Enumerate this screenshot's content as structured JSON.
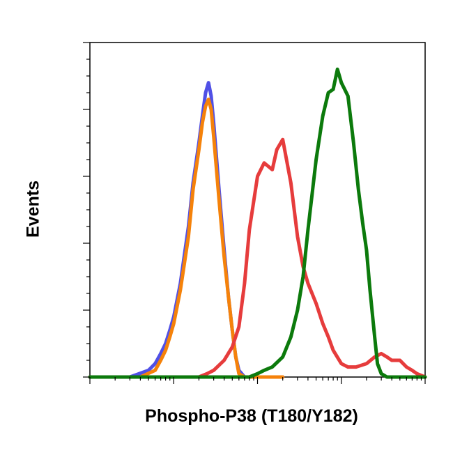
{
  "chart_data": {
    "type": "line",
    "title": "",
    "xlabel": "Phospho-P38 (T180/Y182)",
    "ylabel": "Events",
    "x_scale": "log",
    "xlim": [
      1,
      10000
    ],
    "ylim": [
      0,
      100
    ],
    "grid": false,
    "legend": "none",
    "series": [
      {
        "color": "#5050e6",
        "x": [
          1,
          3,
          5,
          6,
          7,
          8,
          9,
          10,
          12,
          15,
          17,
          20,
          22,
          24,
          26,
          28,
          30,
          35,
          40,
          45,
          50,
          55,
          60,
          70,
          80,
          100,
          200
        ],
        "y": [
          0,
          0,
          2,
          4,
          7,
          10,
          14,
          18,
          28,
          45,
          58,
          70,
          78,
          85,
          88,
          84,
          76,
          55,
          38,
          24,
          14,
          6,
          2,
          0,
          0,
          0,
          0
        ]
      },
      {
        "color": "#f5820a",
        "x": [
          1,
          4,
          6,
          7,
          8,
          9,
          10,
          12,
          15,
          17,
          20,
          22,
          24,
          26,
          28,
          30,
          35,
          40,
          45,
          50,
          55,
          60,
          70,
          80,
          100,
          200
        ],
        "y": [
          0,
          0,
          2,
          5,
          8,
          12,
          16,
          26,
          42,
          56,
          68,
          76,
          81,
          83,
          80,
          72,
          52,
          36,
          24,
          14,
          6,
          1,
          0,
          0,
          0,
          0
        ]
      },
      {
        "color": "#e63c3c",
        "x": [
          1,
          20,
          25,
          30,
          40,
          50,
          60,
          70,
          80,
          100,
          120,
          150,
          170,
          200,
          250,
          300,
          350,
          400,
          500,
          600,
          700,
          800,
          1000,
          1200,
          1500,
          2000,
          2500,
          3000,
          3500,
          4000,
          5000,
          6000,
          7000,
          8000,
          10000
        ],
        "y": [
          0,
          0,
          1,
          2,
          5,
          9,
          15,
          28,
          44,
          60,
          64,
          62,
          68,
          71,
          58,
          42,
          33,
          28,
          22,
          16,
          12,
          8,
          4,
          3,
          3,
          4,
          6,
          7,
          6,
          5,
          5,
          3,
          2,
          1,
          0
        ]
      },
      {
        "color": "#0c7a0c",
        "x": [
          1,
          80,
          100,
          120,
          150,
          200,
          250,
          300,
          350,
          400,
          500,
          600,
          700,
          800,
          900,
          1000,
          1200,
          1400,
          1600,
          1800,
          2000,
          2200,
          2500,
          2700,
          3000,
          3500,
          4000,
          5000,
          10000
        ],
        "y": [
          0,
          0,
          1,
          2,
          3,
          6,
          12,
          20,
          30,
          44,
          65,
          78,
          85,
          86,
          92,
          88,
          84,
          70,
          56,
          46,
          38,
          26,
          12,
          4,
          1,
          0,
          0,
          0,
          0
        ]
      }
    ]
  }
}
